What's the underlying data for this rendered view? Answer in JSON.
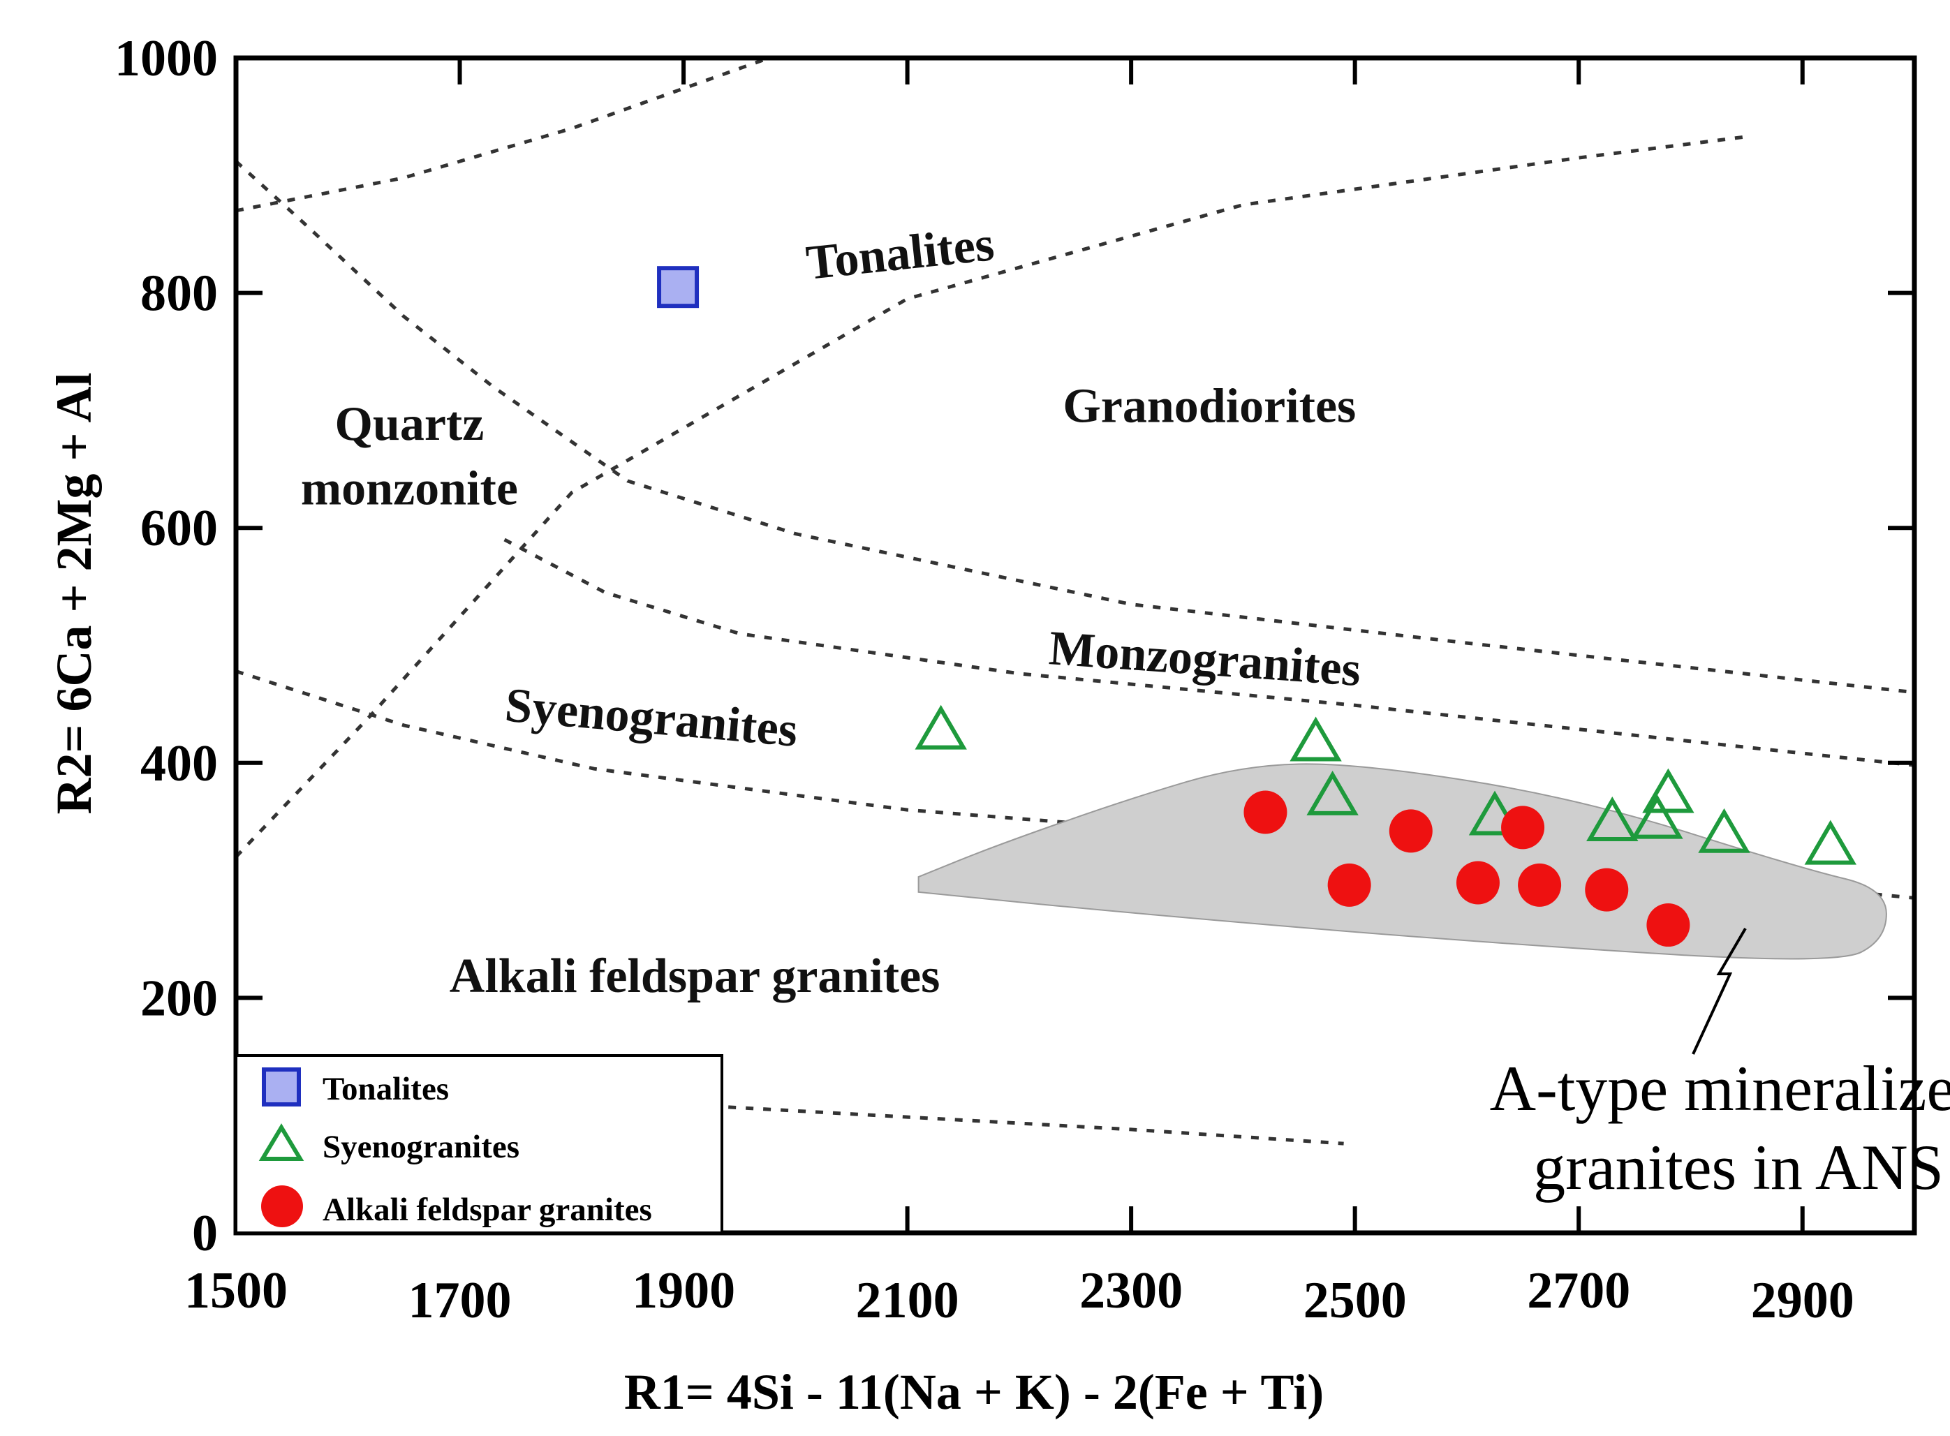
{
  "chart_data": {
    "type": "scatter",
    "xlabel": "R1= 4Si -  11(Na + K) - 2(Fe + Ti)",
    "ylabel": "R2= 6Ca + 2Mg + Al",
    "xlim": [
      1500,
      3000
    ],
    "ylim": [
      0,
      1000
    ],
    "x_ticks": [
      1500,
      1700,
      1900,
      2100,
      2300,
      2500,
      2700,
      2900
    ],
    "y_ticks": [
      0,
      200,
      400,
      600,
      800,
      1000
    ],
    "legend_position": "bottom-left",
    "series": [
      {
        "name": "Tonalites",
        "marker": "square",
        "color": "#1f2fbf",
        "fill": "#aab0f2",
        "points": [
          [
            1895,
            805
          ]
        ]
      },
      {
        "name": "Syenogranites",
        "marker": "triangle-open",
        "color": "#1e9a3c",
        "points": [
          [
            2130,
            428
          ],
          [
            2465,
            418
          ],
          [
            2480,
            372
          ],
          [
            2625,
            355
          ],
          [
            2730,
            350
          ],
          [
            2770,
            352
          ],
          [
            2780,
            374
          ],
          [
            2830,
            340
          ],
          [
            2925,
            330
          ]
        ]
      },
      {
        "name": "Alkali feldspar granites",
        "marker": "circle",
        "color": "#ee1111",
        "points": [
          [
            2420,
            358
          ],
          [
            2495,
            296
          ],
          [
            2550,
            342
          ],
          [
            2610,
            298
          ],
          [
            2650,
            345
          ],
          [
            2665,
            296
          ],
          [
            2725,
            292
          ],
          [
            2780,
            262
          ]
        ]
      }
    ],
    "field_labels": [
      {
        "text": "Tonalites",
        "x": 2095,
        "y": 820,
        "rotate": -6
      },
      {
        "text": "Granodiorites",
        "x": 2370,
        "y": 690,
        "rotate": 0
      },
      {
        "text": "Quartz",
        "x": 1655,
        "y": 675,
        "rotate": 0
      },
      {
        "text": "monzonite",
        "x": 1655,
        "y": 620,
        "rotate": 0
      },
      {
        "text": "Monzogranites",
        "x": 2365,
        "y": 475,
        "rotate": 4
      },
      {
        "text": "Syenogranites",
        "x": 1870,
        "y": 425,
        "rotate": 5
      },
      {
        "text": "Alkali feldspar granites",
        "x": 1910,
        "y": 205,
        "rotate": 0
      }
    ],
    "annotation": {
      "lines": [
        "A-type mineralized",
        "granites in ANS"
      ],
      "shaded_field": [
        [
          2110,
          303
        ],
        [
          2180,
          330
        ],
        [
          2300,
          370
        ],
        [
          2400,
          398
        ],
        [
          2500,
          400
        ],
        [
          2700,
          370
        ],
        [
          2900,
          310
        ],
        [
          2975,
          293
        ],
        [
          2975,
          250
        ],
        [
          2930,
          228
        ],
        [
          2600,
          248
        ],
        [
          2300,
          272
        ],
        [
          2110,
          290
        ]
      ]
    },
    "boundaries": [
      [
        [
          1500,
          870
        ],
        [
          1650,
          898
        ],
        [
          1800,
          940
        ],
        [
          2000,
          1008
        ]
      ],
      [
        [
          1500,
          912
        ],
        [
          1560,
          860
        ],
        [
          1650,
          780
        ],
        [
          1730,
          720
        ],
        [
          1850,
          640
        ],
        [
          2000,
          595
        ],
        [
          2300,
          535
        ],
        [
          2600,
          502
        ],
        [
          3000,
          460
        ]
      ],
      [
        [
          1500,
          320
        ],
        [
          1620,
          440
        ],
        [
          1800,
          630
        ],
        [
          2100,
          795
        ],
        [
          2400,
          875
        ],
        [
          2700,
          915
        ],
        [
          2850,
          933
        ]
      ],
      [
        [
          1740,
          590
        ],
        [
          1830,
          545
        ],
        [
          1950,
          510
        ],
        [
          2200,
          476
        ],
        [
          2500,
          449
        ],
        [
          3000,
          398
        ]
      ],
      [
        [
          1500,
          478
        ],
        [
          1650,
          432
        ],
        [
          1820,
          395
        ],
        [
          2100,
          360
        ],
        [
          2500,
          330
        ],
        [
          3000,
          285
        ]
      ],
      [
        [
          1940,
          107
        ],
        [
          2300,
          88
        ],
        [
          2490,
          76
        ]
      ]
    ]
  }
}
